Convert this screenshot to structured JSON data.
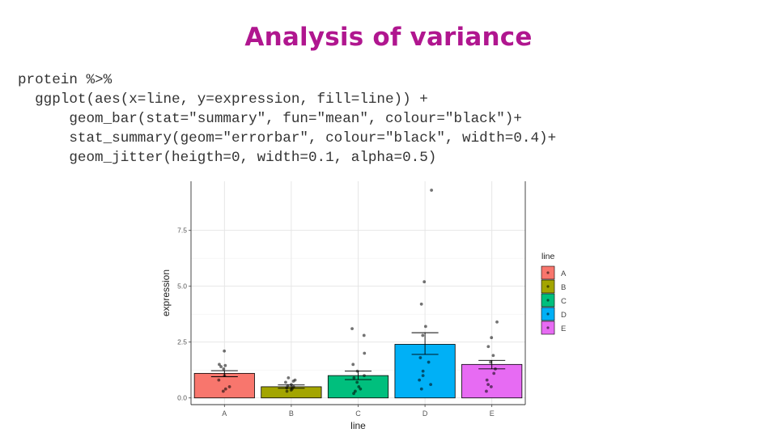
{
  "slide": {
    "title": "Analysis of variance",
    "code_lines": [
      "protein %>%",
      "  ggplot(aes(x=line, y=expression, fill=line)) +",
      "      geom_bar(stat=\"summary\", fun=\"mean\", colour=\"black\")+",
      "      stat_summary(geom=\"errorbar\", colour=\"black\", width=0.4)+",
      "      geom_jitter(heigth=0, width=0.1, alpha=0.5)"
    ]
  },
  "chart_data": {
    "type": "bar",
    "title": "",
    "xlabel": "line",
    "ylabel": "expression",
    "categories": [
      "A",
      "B",
      "C",
      "D",
      "E"
    ],
    "colors": [
      "#f8766d",
      "#a3a500",
      "#00bf7d",
      "#00b0f6",
      "#e76bf3"
    ],
    "means": [
      1.1,
      0.5,
      1.0,
      2.4,
      1.5
    ],
    "error_low": [
      0.95,
      0.43,
      0.82,
      1.95,
      1.3
    ],
    "error_high": [
      1.22,
      0.58,
      1.2,
      2.92,
      1.68
    ],
    "points": [
      [
        2.1,
        1.45,
        1.5,
        1.4,
        1.3,
        1.0,
        0.8,
        0.5,
        0.4,
        0.3
      ],
      [
        0.9,
        0.8,
        0.75,
        0.7,
        0.6,
        0.55,
        0.5,
        0.45,
        0.4,
        0.35,
        0.3
      ],
      [
        3.1,
        2.8,
        2.0,
        1.5,
        1.2,
        1.0,
        0.9,
        0.7,
        0.5,
        0.4,
        0.3,
        0.2
      ],
      [
        9.3,
        5.2,
        4.2,
        3.2,
        2.8,
        1.8,
        1.6,
        1.2,
        1.0,
        0.8,
        0.6,
        0.4
      ],
      [
        3.4,
        2.7,
        2.3,
        1.9,
        1.6,
        1.3,
        1.1,
        0.8,
        0.6,
        0.5,
        0.3
      ]
    ],
    "ylim": [
      -0.3,
      9.7
    ],
    "yticks": [
      0.0,
      2.5,
      5.0,
      7.5
    ],
    "ytick_labels": [
      "0.0",
      "2.5",
      "5.0",
      "7.5"
    ],
    "grid": true,
    "legend": {
      "title": "line",
      "position": "right",
      "entries": [
        "A",
        "B",
        "C",
        "D",
        "E"
      ]
    }
  }
}
